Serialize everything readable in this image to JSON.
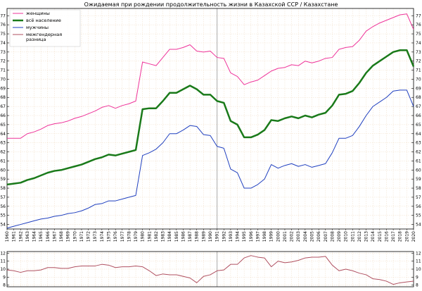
{
  "chart_data": [
    {
      "type": "line",
      "title": "Ожидаемая при рождении продолжительность жизни в Казахской ССР  /  Казахстане",
      "xlabel": "",
      "ylabel": "",
      "xlim": [
        1960,
        2020
      ],
      "ylim": [
        53.5,
        77.8
      ],
      "y_ticks": [
        54,
        55,
        56,
        57,
        58,
        59,
        60,
        61,
        62,
        63,
        64,
        65,
        66,
        67,
        68,
        69,
        70,
        71,
        72,
        73,
        74,
        75,
        76,
        77
      ],
      "y_ticks_right": true,
      "grid": true,
      "legend_position": "top-left",
      "vertical_marker_x": 1991,
      "x": [
        1960,
        1961,
        1962,
        1963,
        1964,
        1965,
        1966,
        1967,
        1968,
        1969,
        1970,
        1971,
        1972,
        1973,
        1974,
        1975,
        1976,
        1977,
        1978,
        1979,
        1980,
        1981,
        1982,
        1983,
        1984,
        1985,
        1986,
        1987,
        1988,
        1989,
        1990,
        1991,
        1992,
        1993,
        1994,
        1995,
        1996,
        1997,
        1998,
        1999,
        2000,
        2001,
        2002,
        2003,
        2004,
        2005,
        2006,
        2007,
        2008,
        2009,
        2010,
        2011,
        2012,
        2013,
        2014,
        2015,
        2016,
        2017,
        2018,
        2019,
        2020
      ],
      "series": [
        {
          "name": "женщины",
          "color": "#ee3399",
          "width": 1,
          "values": [
            63.5,
            63.5,
            63.5,
            64.0,
            64.2,
            64.5,
            64.9,
            65.1,
            65.2,
            65.4,
            65.7,
            65.9,
            66.2,
            66.5,
            66.9,
            67.1,
            66.8,
            67.1,
            67.3,
            67.6,
            71.9,
            71.7,
            71.5,
            72.4,
            73.3,
            73.3,
            73.5,
            73.8,
            73.1,
            73.0,
            73.1,
            72.4,
            72.3,
            70.7,
            70.3,
            69.4,
            69.7,
            69.9,
            70.4,
            70.9,
            71.2,
            71.3,
            71.6,
            71.5,
            72.0,
            71.8,
            72.0,
            72.3,
            72.4,
            73.3,
            73.5,
            73.6,
            74.3,
            75.3,
            75.8,
            76.2,
            76.5,
            76.8,
            77.1,
            77.2,
            75.5
          ]
        },
        {
          "name": "всё население",
          "color": "#1a7a1a",
          "width": 2.5,
          "values": [
            58.4,
            58.5,
            58.6,
            58.9,
            59.1,
            59.4,
            59.7,
            59.9,
            60.0,
            60.2,
            60.4,
            60.6,
            60.9,
            61.2,
            61.4,
            61.7,
            61.6,
            61.8,
            62.0,
            62.2,
            66.7,
            66.8,
            66.8,
            67.6,
            68.5,
            68.5,
            68.9,
            69.3,
            68.9,
            68.3,
            68.3,
            67.6,
            67.4,
            65.4,
            65.0,
            63.6,
            63.6,
            63.9,
            64.4,
            65.5,
            65.4,
            65.7,
            65.9,
            65.7,
            66.0,
            65.8,
            66.1,
            66.3,
            67.1,
            68.3,
            68.4,
            68.7,
            69.6,
            70.7,
            71.5,
            72.0,
            72.5,
            73.0,
            73.2,
            73.2,
            71.4
          ]
        },
        {
          "name": "мужчины",
          "color": "#1f3fbf",
          "width": 1,
          "values": [
            53.6,
            53.8,
            54.0,
            54.2,
            54.4,
            54.6,
            54.7,
            54.9,
            55.0,
            55.2,
            55.3,
            55.5,
            55.8,
            56.2,
            56.3,
            56.6,
            56.6,
            56.8,
            57.0,
            57.2,
            61.6,
            61.9,
            62.3,
            63.0,
            64.0,
            64.0,
            64.4,
            64.9,
            64.8,
            63.9,
            63.8,
            62.6,
            62.4,
            60.1,
            59.7,
            58.0,
            58.0,
            58.4,
            59.0,
            60.6,
            60.2,
            60.5,
            60.7,
            60.4,
            60.6,
            60.3,
            60.5,
            60.7,
            61.9,
            63.5,
            63.5,
            63.8,
            64.8,
            66.0,
            67.0,
            67.5,
            68.0,
            68.7,
            68.8,
            68.8,
            67.0
          ]
        }
      ],
      "legend": [
        {
          "label": "женщины",
          "color": "#ee3399",
          "width": 1
        },
        {
          "label": "всё население",
          "color": "#1a7a1a",
          "width": 2.5
        },
        {
          "label": "мужчины",
          "color": "#1f3fbf",
          "width": 1
        },
        {
          "label": "межгендерная\nразница",
          "color": "#b05060",
          "width": 1
        }
      ]
    },
    {
      "type": "line",
      "title": "",
      "xlabel": "",
      "ylabel": "",
      "xlim": [
        1960,
        2020
      ],
      "ylim": [
        7.8,
        12.2
      ],
      "y_ticks": [
        8,
        9,
        10,
        11,
        12
      ],
      "y_ticks_right": true,
      "grid": true,
      "vertical_marker_x": 1991,
      "x_tick_labels": [
        "1960",
        "1961",
        "1962",
        "1963",
        "1964",
        "1965",
        "1966",
        "1967",
        "1968",
        "1969",
        "1970",
        "1971",
        "1972",
        "1973",
        "1974",
        "1975",
        "1976",
        "1977",
        "1978",
        "1979",
        "1980",
        "1981",
        "1982",
        "1983",
        "1984",
        "1985",
        "1986",
        "1987",
        "1988",
        "1989",
        "1990",
        "1991",
        "1992",
        "1993",
        "1994",
        "1995",
        "1996",
        "1997",
        "1998",
        "1999",
        "2000",
        "2001",
        "2002",
        "2003",
        "2004",
        "2005",
        "2006",
        "2007",
        "2008",
        "2009",
        "2010",
        "2011",
        "2012",
        "2013",
        "2014",
        "2015",
        "2016",
        "2017",
        "2018",
        "2019",
        "2020"
      ],
      "x": [
        1960,
        1961,
        1962,
        1963,
        1964,
        1965,
        1966,
        1967,
        1968,
        1969,
        1970,
        1971,
        1972,
        1973,
        1974,
        1975,
        1976,
        1977,
        1978,
        1979,
        1980,
        1981,
        1982,
        1983,
        1984,
        1985,
        1986,
        1987,
        1988,
        1989,
        1990,
        1991,
        1992,
        1993,
        1994,
        1995,
        1996,
        1997,
        1998,
        1999,
        2000,
        2001,
        2002,
        2003,
        2004,
        2005,
        2006,
        2007,
        2008,
        2009,
        2010,
        2011,
        2012,
        2013,
        2014,
        2015,
        2016,
        2017,
        2018,
        2019,
        2020
      ],
      "series": [
        {
          "name": "межгендерная разница",
          "color": "#b05060",
          "width": 1,
          "values": [
            9.9,
            9.8,
            9.6,
            9.8,
            9.8,
            9.9,
            10.2,
            10.2,
            10.1,
            10.1,
            10.3,
            10.4,
            10.4,
            10.4,
            10.6,
            10.5,
            10.2,
            10.3,
            10.3,
            10.4,
            10.3,
            9.8,
            9.2,
            9.4,
            9.3,
            9.3,
            9.1,
            8.9,
            8.3,
            9.1,
            9.3,
            9.8,
            9.9,
            10.6,
            10.6,
            11.4,
            11.7,
            11.5,
            11.4,
            10.3,
            11.0,
            10.8,
            10.9,
            11.1,
            11.4,
            11.5,
            11.5,
            11.6,
            10.5,
            9.8,
            10.0,
            9.8,
            9.5,
            9.3,
            8.8,
            8.7,
            8.5,
            8.1,
            8.3,
            8.4,
            8.5
          ]
        }
      ]
    }
  ]
}
